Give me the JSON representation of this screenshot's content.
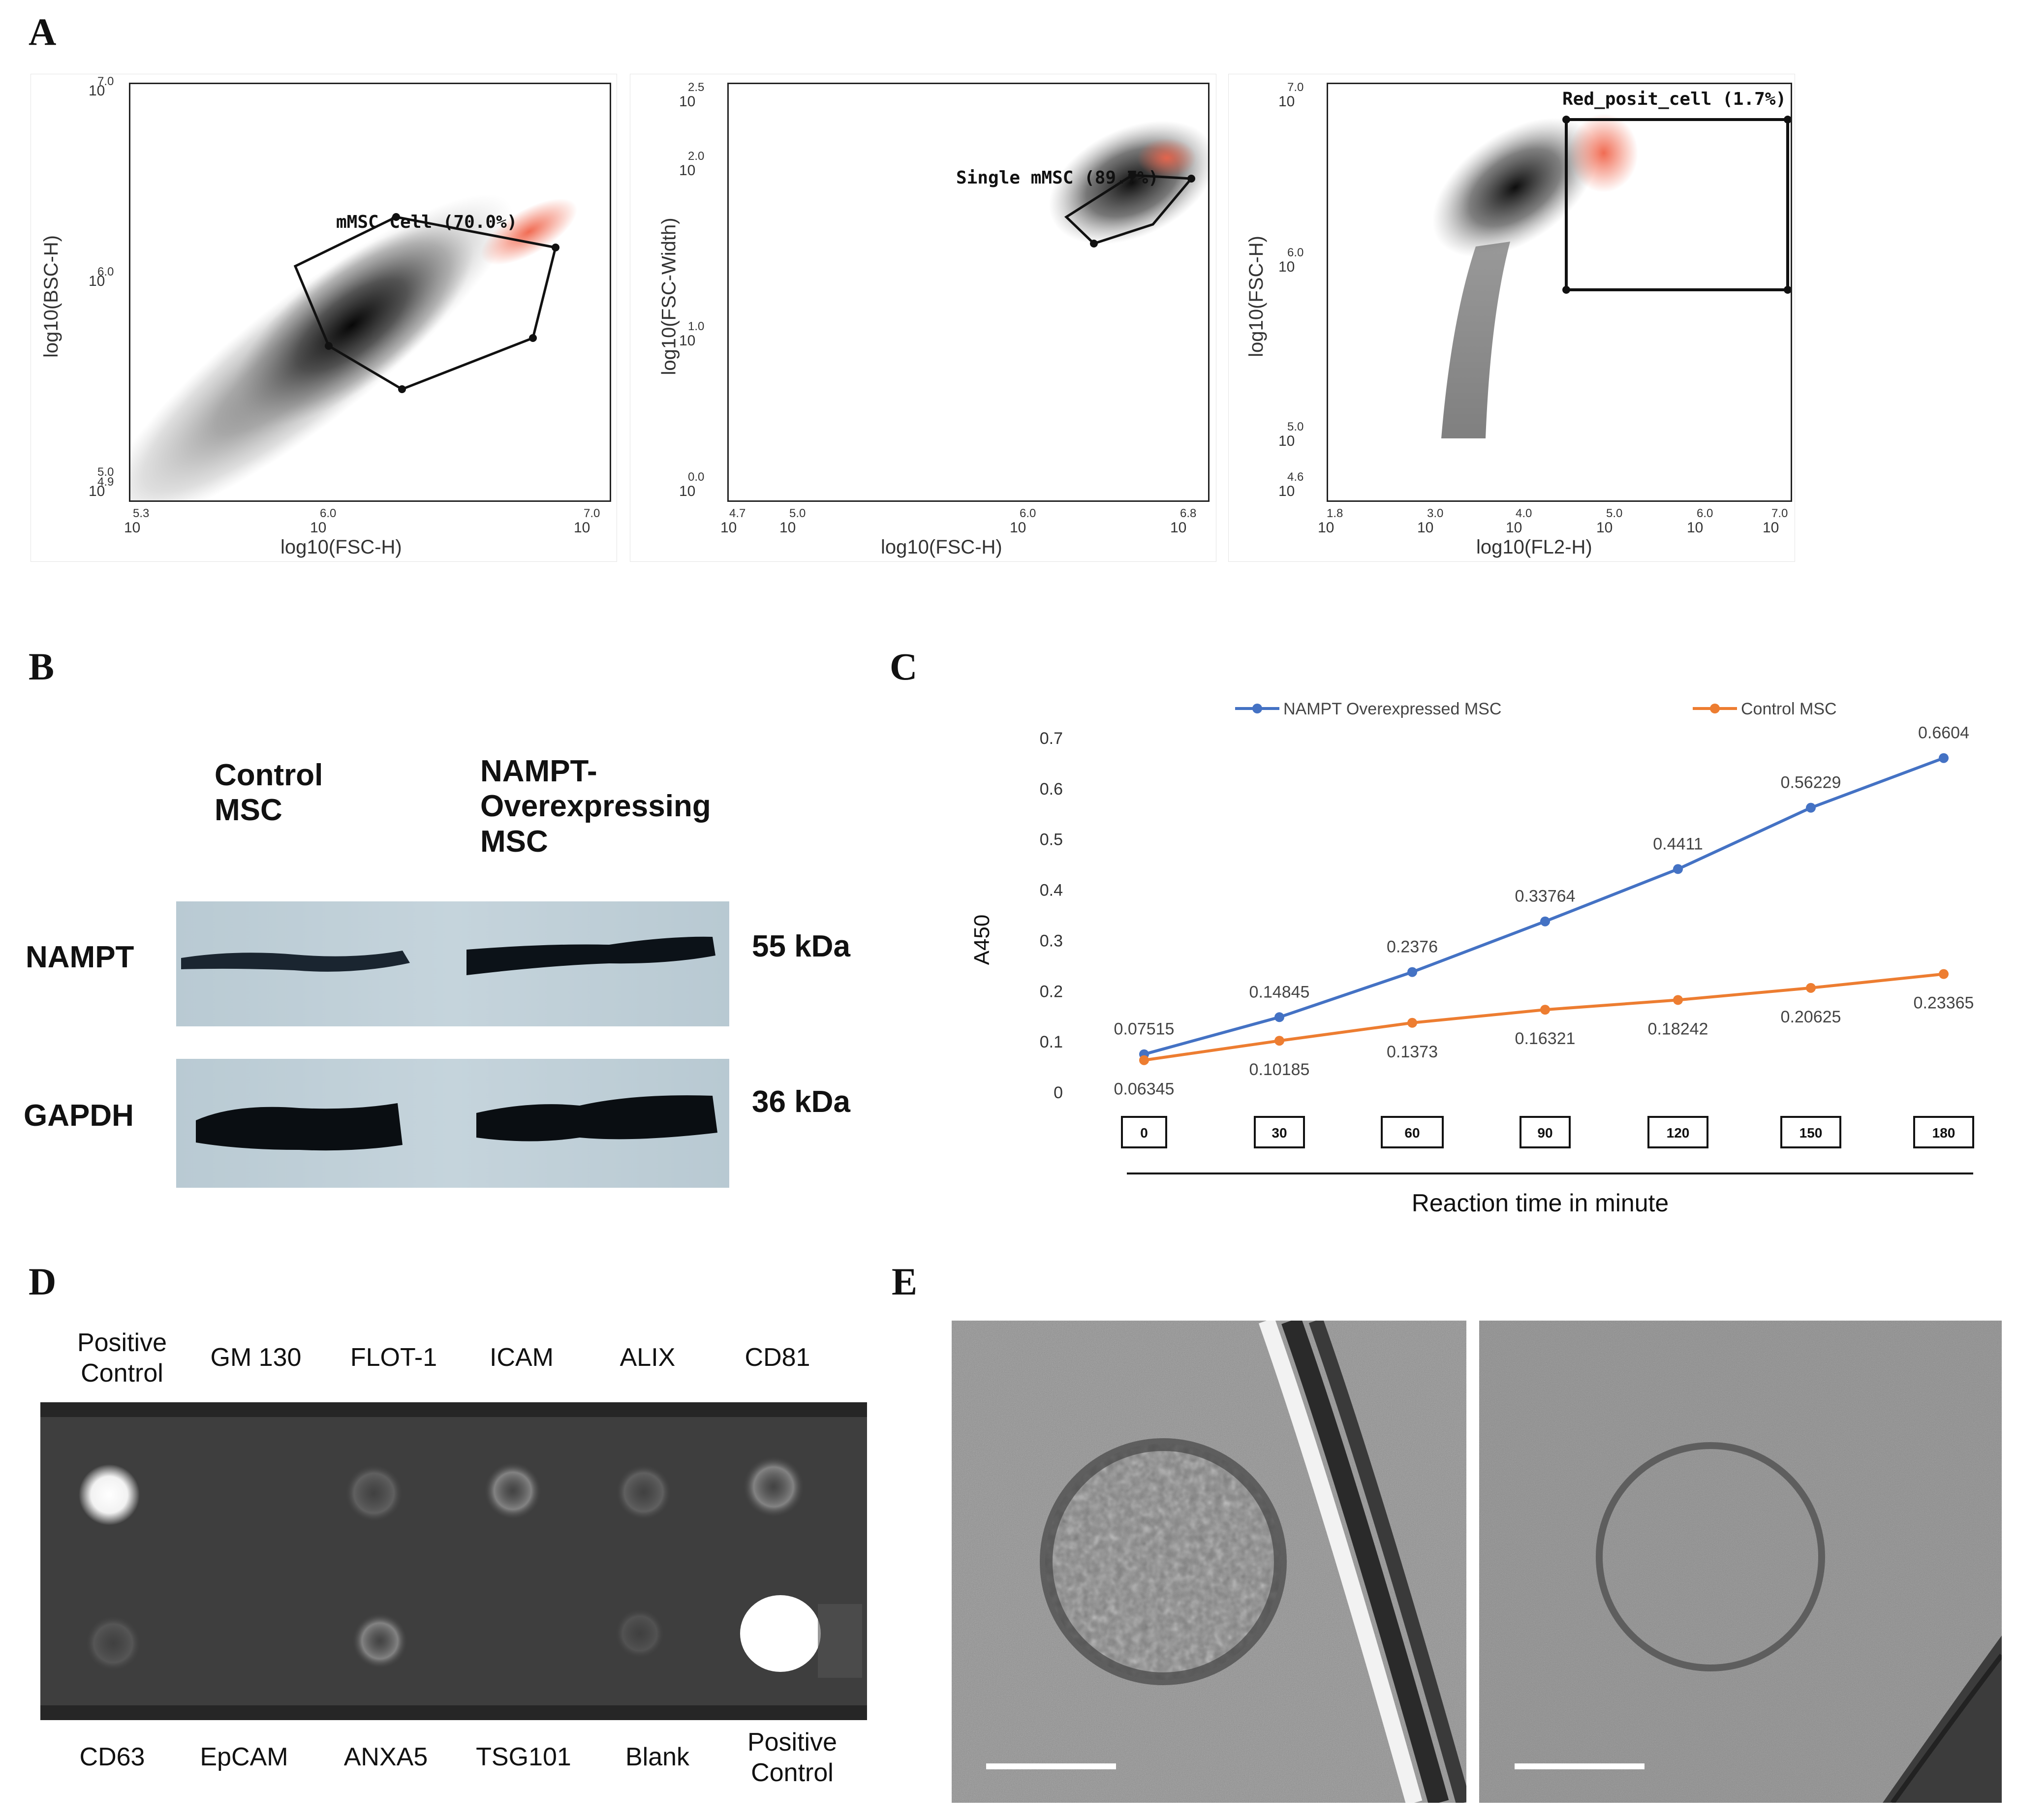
{
  "panels": {
    "A": "A",
    "B": "B",
    "C": "C",
    "D": "D",
    "E": "E"
  },
  "panel_a": {
    "plot1": {
      "gate_label": "mMSC Cell (70.0%)",
      "x_label": "log10(FSC-H)",
      "y_label": "log10(BSC-H)",
      "x_ticks": [
        "5.3",
        "6.0",
        "7.0"
      ],
      "y_ticks": [
        "7.0",
        "6.0",
        "5.0",
        "4.9"
      ],
      "tick_base": "10"
    },
    "plot2": {
      "gate_label": "Single mMSC (89.7%)",
      "x_label": "log10(FSC-H)",
      "y_label": "log10(FSC-Width)",
      "x_ticks": [
        "4.7",
        "5.0",
        "6.0",
        "6.8"
      ],
      "y_ticks": [
        "2.5",
        "2.0",
        "1.0",
        "0.0"
      ],
      "tick_base": "10"
    },
    "plot3": {
      "gate_label": "Red_posit_cell (1.7%)",
      "x_label": "log10(FL2-H)",
      "y_label": "log10(FSC-H)",
      "x_ticks": [
        "1.8",
        "3.0",
        "4.0",
        "5.0",
        "6.0",
        "7.0"
      ],
      "y_ticks": [
        "7.0",
        "6.0",
        "5.0",
        "4.6"
      ],
      "tick_base": "10"
    }
  },
  "panel_b": {
    "col1": [
      "Control",
      "MSC"
    ],
    "col2": [
      "NAMPT-",
      "Overexpressing",
      "MSC"
    ],
    "row1_label": "NAMPT",
    "row1_size": "55 kDa",
    "row2_label": "GAPDH",
    "row2_size": "36 kDa"
  },
  "chart_data": {
    "type": "line",
    "title": "",
    "xlabel": "Reaction time in minute",
    "ylabel": "A450",
    "categories": [
      "0",
      "30",
      "60",
      "90",
      "120",
      "150",
      "180"
    ],
    "ylim": [
      0,
      0.7
    ],
    "yticks": [
      "0",
      "0.1",
      "0.2",
      "0.3",
      "0.4",
      "0.5",
      "0.6",
      "0.7"
    ],
    "legend_position": "top",
    "series": [
      {
        "name": "NAMPT Overexpressed MSC",
        "color": "#4472c4",
        "values": [
          0.07515,
          0.14845,
          0.2376,
          0.33764,
          0.4411,
          0.56229,
          0.6604
        ],
        "labels": [
          "0.07515",
          "0.14845",
          "0.2376",
          "0.33764",
          "0.4411",
          "0.56229",
          "0.6604"
        ]
      },
      {
        "name": "Control MSC",
        "color": "#ed7d31",
        "values": [
          0.06345,
          0.10185,
          0.1373,
          0.16321,
          0.18242,
          0.20625,
          0.23365
        ],
        "labels": [
          "0.06345",
          "0.10185",
          "0.1373",
          "0.16321",
          "0.18242",
          "0.20625",
          "0.23365"
        ]
      }
    ]
  },
  "panel_d": {
    "top_labels": [
      [
        "Positive",
        "Control"
      ],
      [
        "GM 130"
      ],
      [
        "FLOT-1"
      ],
      [
        "ICAM"
      ],
      [
        "ALIX"
      ],
      [
        "CD81"
      ]
    ],
    "bottom_labels": [
      [
        "CD63"
      ],
      [
        "EpCAM"
      ],
      [
        "ANXA5"
      ],
      [
        "TSG101"
      ],
      [
        "Blank"
      ],
      [
        "Positive",
        "Control"
      ]
    ]
  }
}
